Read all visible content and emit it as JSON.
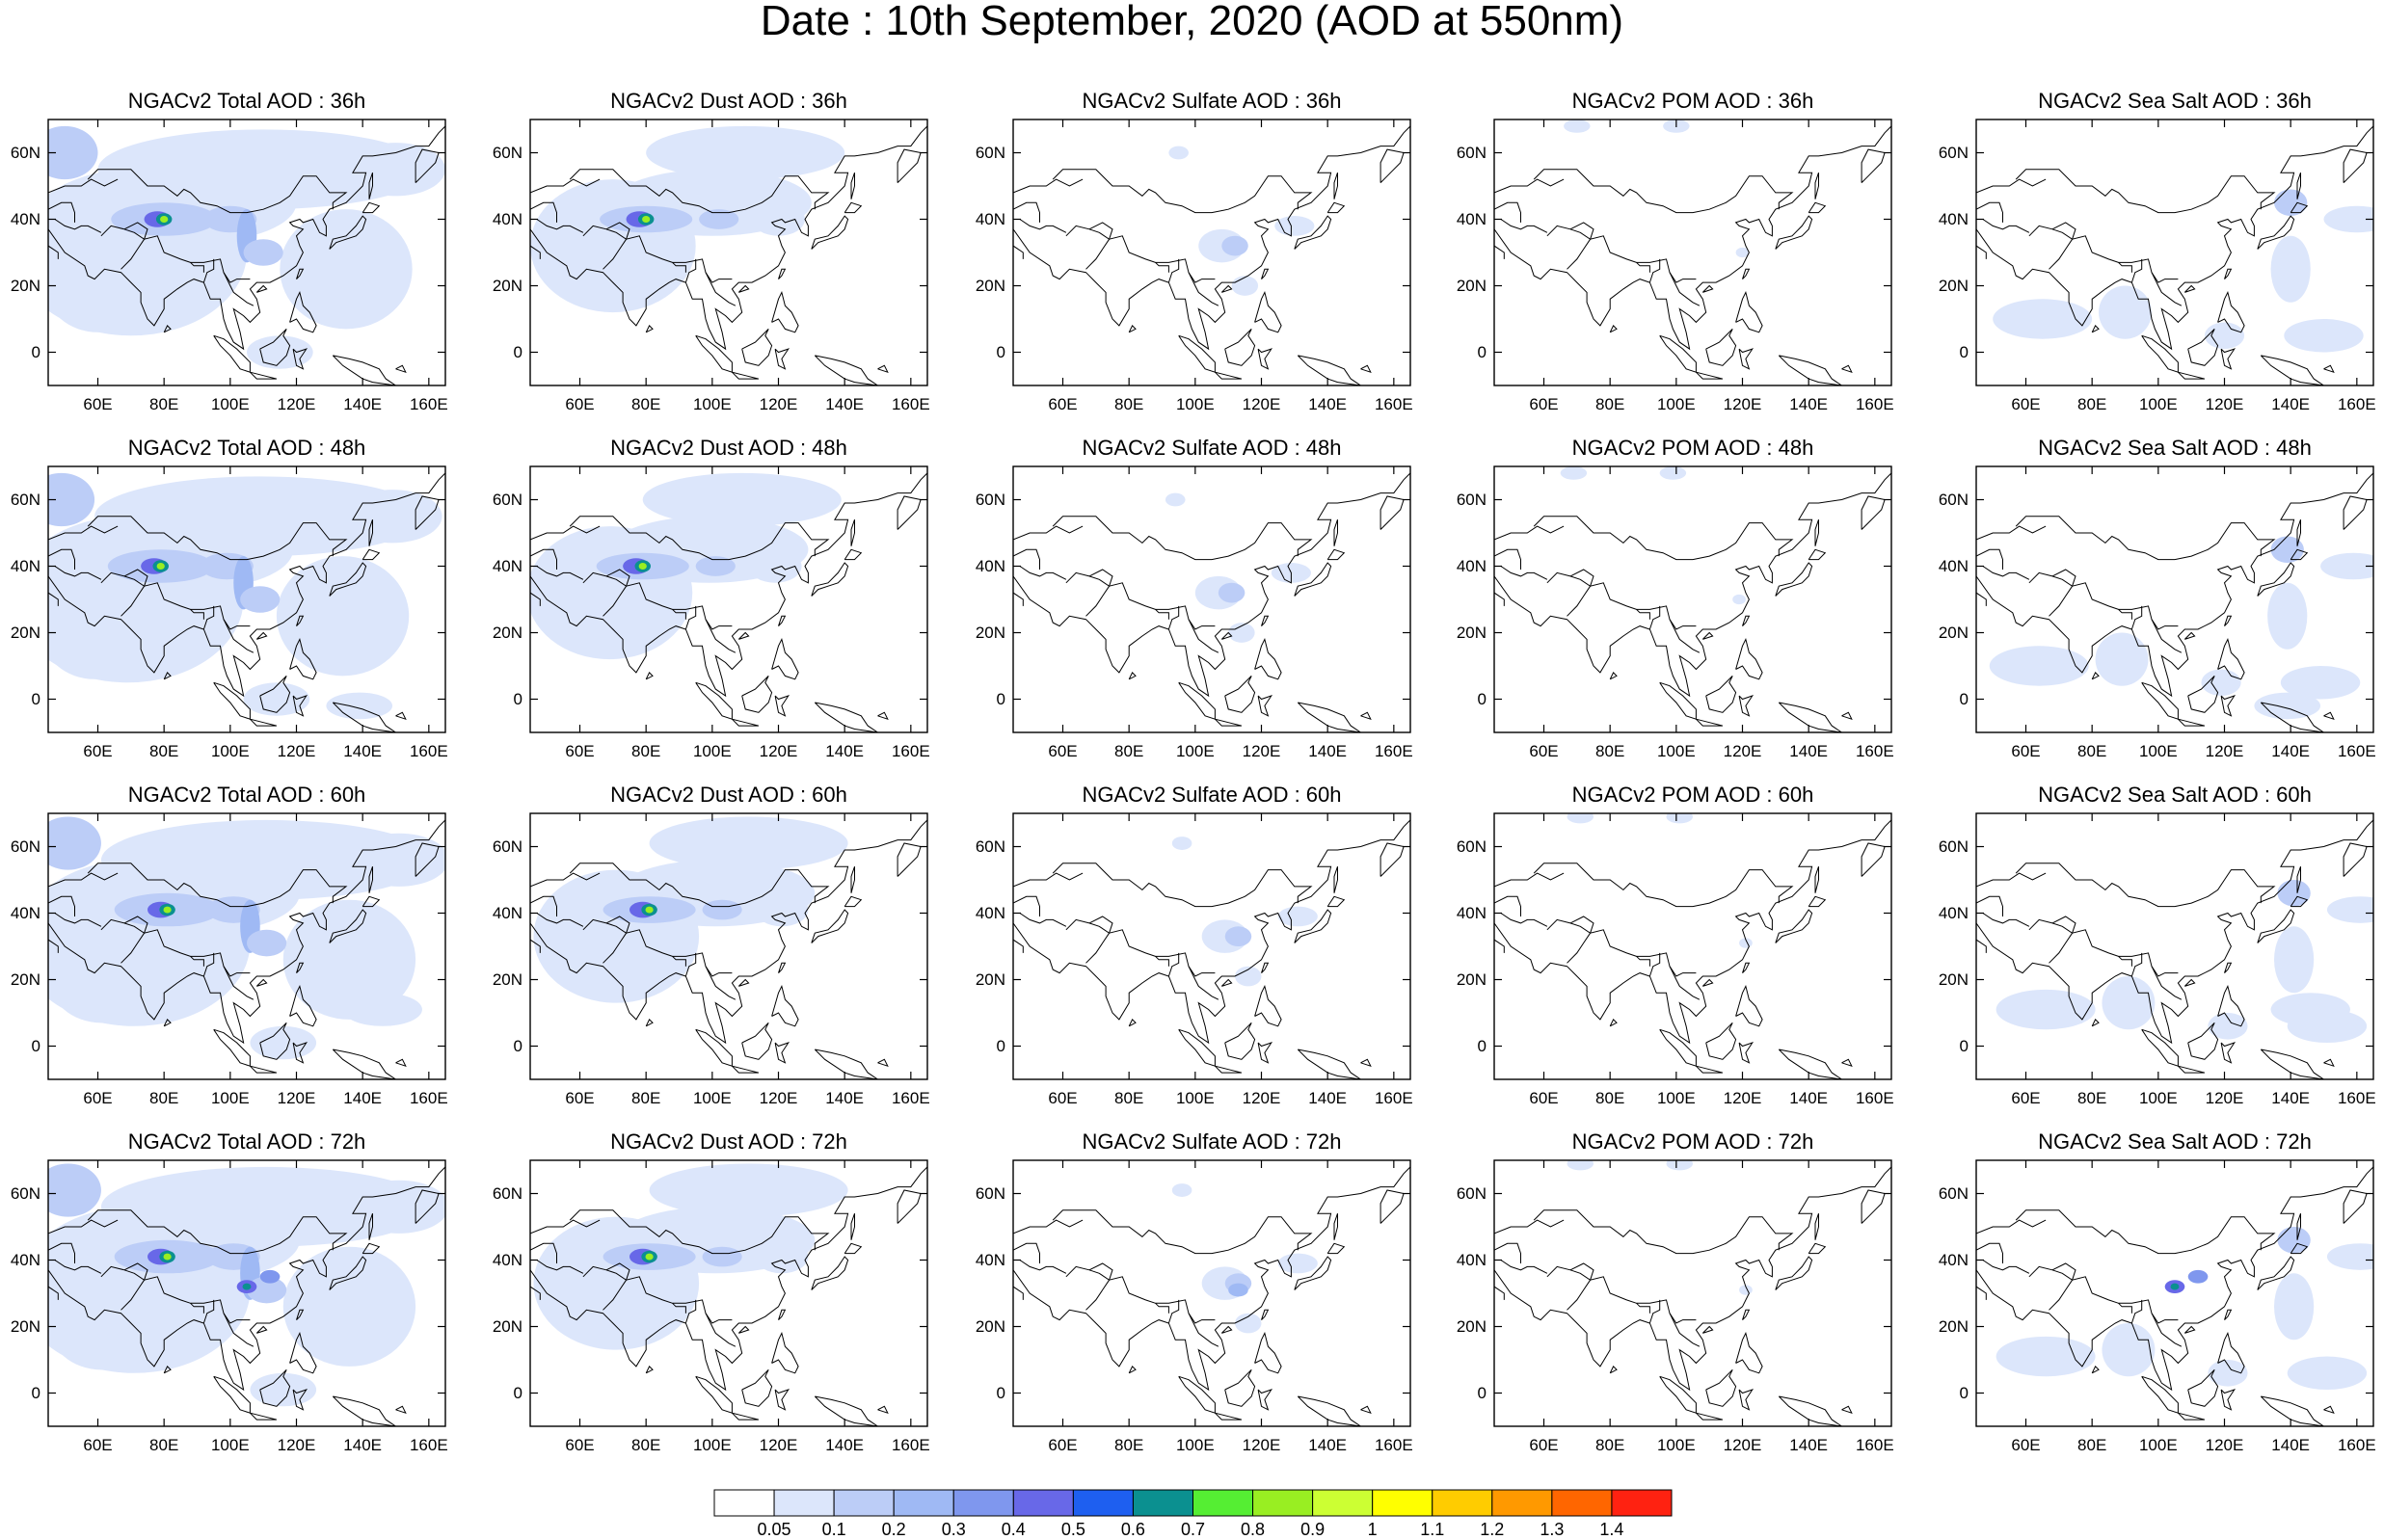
{
  "figure": {
    "title": "Date : 10th September, 2020 (AOD at 550nm)"
  },
  "panel_titles": [
    [
      "NGACv2 Total AOD : 36h",
      "NGACv2 Dust AOD : 36h",
      "NGACv2 Sulfate AOD : 36h",
      "NGACv2 POM AOD : 36h",
      "NGACv2 Sea Salt AOD : 36h"
    ],
    [
      "NGACv2 Total AOD : 48h",
      "NGACv2 Dust AOD : 48h",
      "NGACv2 Sulfate AOD : 48h",
      "NGACv2 POM AOD : 48h",
      "NGACv2 Sea Salt AOD : 48h"
    ],
    [
      "NGACv2 Total AOD : 60h",
      "NGACv2 Dust AOD : 60h",
      "NGACv2 Sulfate AOD : 60h",
      "NGACv2 POM AOD : 60h",
      "NGACv2 Sea Salt AOD : 60h"
    ],
    [
      "NGACv2 Total AOD : 72h",
      "NGACv2 Dust AOD : 72h",
      "NGACv2 Sulfate AOD : 72h",
      "NGACv2 POM AOD : 72h",
      "NGACv2 Sea Salt  AOD : 72h"
    ]
  ],
  "map_axes": {
    "lon_ticks": [
      "60E",
      "80E",
      "100E",
      "120E",
      "140E",
      "160E"
    ],
    "lat_ticks": [
      "60N",
      "40N",
      "20N",
      "0"
    ],
    "lon_range": [
      45,
      165
    ],
    "lat_range": [
      -10,
      70
    ]
  },
  "colorbar": {
    "labels": [
      "0.05",
      "0.1",
      "0.2",
      "0.3",
      "0.4",
      "0.5",
      "0.6",
      "0.7",
      "0.8",
      "0.9",
      "1",
      "1.1",
      "1.2",
      "1.3",
      "1.4"
    ],
    "colors": [
      "#ffffff",
      "#dce6fb",
      "#bccdf7",
      "#9fb9f4",
      "#7f97ee",
      "#6868e8",
      "#1e5ff0",
      "#0b9090",
      "#55ee33",
      "#99ee22",
      "#ccff33",
      "#ffff00",
      "#ffcc00",
      "#ff9900",
      "#ff6600",
      "#ff2211"
    ]
  }
}
